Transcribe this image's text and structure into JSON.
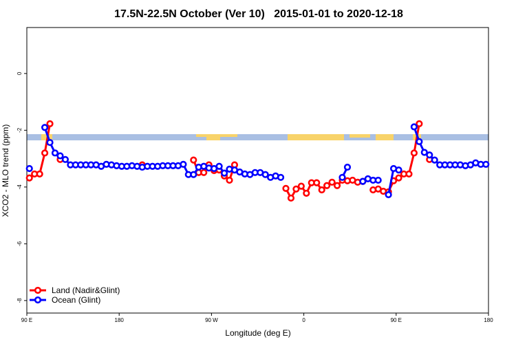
{
  "chart_data": {
    "type": "line",
    "title": "17.5N-22.5N October (Ver 10)   2015-01-01 to 2020-12-18",
    "xlabel": "Longitude (deg E)",
    "ylabel": "XCO2 - MLO trend (ppm)",
    "x": [
      92.5,
      97.5,
      102.5,
      107.5,
      112.5,
      117.5,
      122.5,
      127.5,
      132.5,
      137.5,
      142.5,
      147.5,
      152.5,
      157.5,
      162.5,
      167.5,
      172.5,
      177.5,
      182.5,
      187.5,
      192.5,
      197.5,
      202.5,
      207.5,
      212.5,
      217.5,
      222.5,
      227.5,
      232.5,
      237.5,
      242.5,
      247.5,
      252.5,
      257.5,
      262.5,
      267.5,
      272.5,
      277.5,
      282.5,
      287.5,
      292.5,
      297.5,
      302.5,
      307.5,
      312.5,
      317.5,
      322.5,
      327.5,
      332.5,
      337.5,
      342.5,
      347.5,
      352.5,
      357.5,
      362.5,
      367.5,
      372.5,
      377.5,
      382.5,
      387.5,
      392.5,
      397.5,
      402.5,
      407.5,
      412.5,
      417.5,
      422.5,
      427.5,
      432.5,
      437.5,
      442.5,
      447.5,
      452.5,
      457.5,
      462.5,
      467.5,
      472.5,
      477.5,
      482.5,
      487.5,
      492.5,
      497.5,
      502.5,
      507.5,
      512.5,
      517.5,
      522.5,
      527.5,
      532.5,
      537.5
    ],
    "series": [
      {
        "name": "Land (Nadir&Glint)",
        "color": "#ff0000",
        "values": [
          -3.68,
          -3.54,
          -3.54,
          -2.8,
          -1.77,
          null,
          -3.03,
          null,
          null,
          null,
          null,
          null,
          null,
          null,
          null,
          null,
          null,
          null,
          null,
          null,
          null,
          null,
          -3.22,
          null,
          null,
          null,
          null,
          null,
          null,
          null,
          null,
          null,
          -3.05,
          -3.49,
          -3.49,
          -3.22,
          -3.42,
          -3.4,
          -3.61,
          -3.76,
          -3.22,
          null,
          null,
          null,
          null,
          null,
          null,
          null,
          null,
          null,
          -4.05,
          -4.39,
          -4.07,
          -3.97,
          -4.22,
          -3.85,
          -3.85,
          -4.1,
          -3.95,
          -3.83,
          -3.95,
          -3.76,
          -3.78,
          -3.76,
          -3.83,
          -3.8,
          null,
          -4.1,
          -4.07,
          -4.15,
          -4.17,
          -3.78,
          -3.68,
          -3.54,
          -3.54,
          -2.8,
          -1.77,
          null,
          -3.03,
          null,
          null,
          null,
          null,
          null,
          null,
          null,
          null,
          null,
          null,
          null
        ]
      },
      {
        "name": "Ocean (Glint)",
        "color": "#0000ff",
        "values": [
          -3.35,
          null,
          null,
          -1.9,
          -2.43,
          -2.8,
          -2.9,
          -3.03,
          -3.22,
          -3.22,
          -3.22,
          -3.22,
          -3.22,
          -3.22,
          -3.27,
          -3.2,
          -3.22,
          -3.25,
          -3.27,
          -3.27,
          -3.25,
          -3.27,
          -3.3,
          -3.27,
          -3.27,
          -3.27,
          -3.25,
          -3.25,
          -3.25,
          -3.25,
          -3.2,
          -3.56,
          -3.56,
          -3.3,
          -3.27,
          -3.33,
          -3.35,
          -3.27,
          -3.51,
          -3.37,
          -3.4,
          -3.47,
          -3.54,
          -3.56,
          -3.49,
          -3.49,
          -3.56,
          -3.66,
          -3.61,
          -3.66,
          null,
          null,
          null,
          null,
          null,
          null,
          null,
          null,
          null,
          null,
          null,
          -3.66,
          -3.3,
          null,
          null,
          -3.8,
          -3.71,
          -3.76,
          -3.76,
          null,
          -4.27,
          -3.35,
          -3.4,
          null,
          null,
          -1.88,
          -2.4,
          -2.78,
          -2.87,
          -3.05,
          -3.22,
          -3.22,
          -3.22,
          -3.22,
          -3.22,
          -3.25,
          -3.22,
          -3.15,
          -3.2,
          -3.2
        ]
      }
    ],
    "xlim": [
      90,
      540
    ],
    "xticks": [
      {
        "value": 90,
        "label": "90 E"
      },
      180,
      {
        "value": 270,
        "label": "90 W"
      },
      {
        "value": 360,
        "label": "0"
      },
      {
        "value": 450,
        "label": "90 E"
      },
      180.0001
    ],
    "ylim": [
      -8.44,
      1.62
    ],
    "yticks": [
      0,
      -2,
      -4,
      -6,
      -8
    ],
    "legend": "bottom-left"
  }
}
